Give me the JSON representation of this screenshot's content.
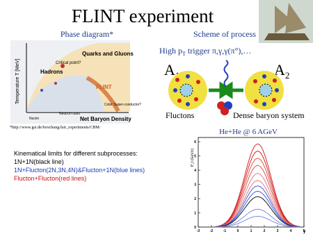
{
  "title": "FLINT experiment",
  "phase_diagram": {
    "heading": "Phase diagram*",
    "y_axis": "Temperature T [MeV]",
    "x_axis": "Net Baryon Density",
    "labels": [
      "Quarks and Gluons",
      "Hadrons",
      "Critical point?",
      "Nuclei",
      "Neutron stars",
      "FLINT",
      "Color Super-conductor?"
    ],
    "footnote": "*http://www.gsi.de/forschung/fair_experiments/CBM/"
  },
  "scheme": {
    "heading": "Scheme of process",
    "trigger": {
      "pre": "High p",
      "sub": "T",
      "post": " trigger π,γ,γ(π°),…"
    },
    "nucleus_a": {
      "main": "A",
      "sub": "1"
    },
    "nucleus_b": {
      "main": "A",
      "sub": "2"
    },
    "left_label": "Fluctons",
    "right_label": "Dense baryon system"
  },
  "plot": {
    "heading": "He+He @ 6 AGeV",
    "y_label": "P_t (GeV/c)",
    "x_label": "y",
    "xlim": [
      -3,
      5
    ],
    "ylim": [
      0,
      6.3
    ],
    "xticks": [
      -3,
      -2,
      -1,
      0,
      1,
      2,
      3,
      4,
      5
    ],
    "yticks": [
      0,
      1,
      2,
      3,
      4,
      5,
      6
    ]
  },
  "notes": {
    "heading": "Kinematical limits for different subprocesses:",
    "lines": [
      "1N+1N(black line)",
      "1N+Flucton(2N,3N,4N)&Flucton+1N(blue  lines)",
      "Flucton+Flucton(red lines)"
    ]
  }
}
